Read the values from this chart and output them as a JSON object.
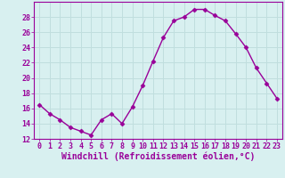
{
  "x": [
    0,
    1,
    2,
    3,
    4,
    5,
    6,
    7,
    8,
    9,
    10,
    11,
    12,
    13,
    14,
    15,
    16,
    17,
    18,
    19,
    20,
    21,
    22,
    23
  ],
  "y": [
    16.5,
    15.3,
    14.5,
    13.5,
    13.0,
    12.5,
    14.5,
    15.3,
    14.0,
    16.2,
    19.0,
    22.2,
    25.3,
    27.5,
    28.0,
    29.0,
    29.0,
    28.2,
    27.5,
    25.8,
    24.0,
    21.3,
    19.3,
    17.3
  ],
  "line_color": "#990099",
  "marker": "D",
  "markersize": 2.5,
  "linewidth": 1.0,
  "xlabel": "Windchill (Refroidissement éolien,°C)",
  "xlabel_fontsize": 7,
  "background_color": "#d8f0f0",
  "grid_color": "#b8d8d8",
  "ylim": [
    12,
    30
  ],
  "xlim": [
    -0.5,
    23.5
  ],
  "yticks": [
    12,
    14,
    16,
    18,
    20,
    22,
    24,
    26,
    28
  ],
  "xticks": [
    0,
    1,
    2,
    3,
    4,
    5,
    6,
    7,
    8,
    9,
    10,
    11,
    12,
    13,
    14,
    15,
    16,
    17,
    18,
    19,
    20,
    21,
    22,
    23
  ],
  "tick_fontsize": 6,
  "tick_color": "#990099",
  "axes_color": "#990099",
  "spine_color": "#990099"
}
